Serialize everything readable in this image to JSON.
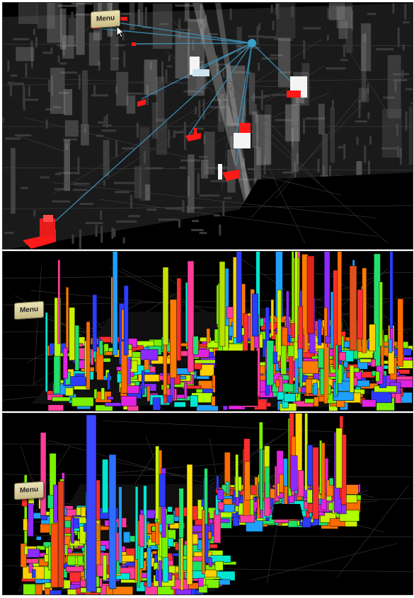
{
  "panels": [
    {
      "menu_label": "Menu"
    },
    {
      "menu_label": "Menu"
    },
    {
      "menu_label": "Menu"
    }
  ],
  "colors": {
    "background": "#000000",
    "link_lines": "#3f8fb5",
    "highlight_red": "#ff1a1a",
    "highlight_white": "#f4f4f4",
    "menu_button": "#ddd3a5"
  },
  "icons": [
    "cursor-arrow-icon",
    "hub-node-icon"
  ]
}
